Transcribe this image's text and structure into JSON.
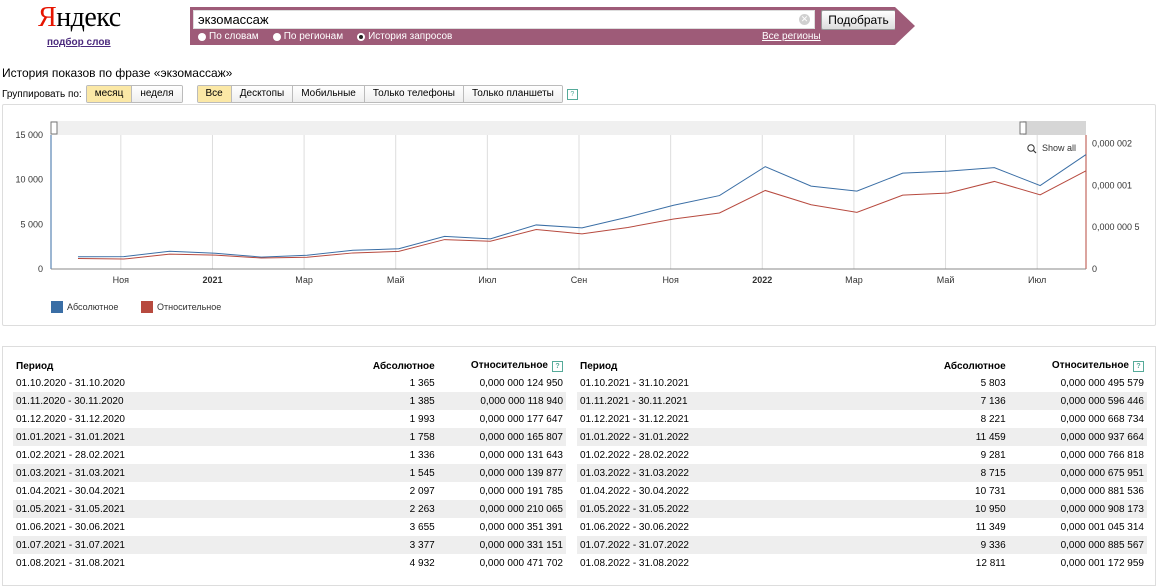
{
  "header": {
    "logo_prefix": "Я",
    "logo_rest": "ндекс",
    "logo_sub": "подбор слов",
    "query": "экзомассаж",
    "submit_label": "Подобрать",
    "radio_words": "По словам",
    "radio_regions": "По регионам",
    "radio_history": "История запросов",
    "regions_link": "Все регионы"
  },
  "heading": "История показов по фразе «экзомассаж»",
  "group": {
    "label": "Группировать по:",
    "month": "месяц",
    "week": "неделя",
    "all": "Все",
    "desktops": "Десктопы",
    "mobile": "Мобильные",
    "phones": "Только телефоны",
    "tablets": "Только планшеты"
  },
  "chart_data": {
    "type": "line",
    "x": [
      "2020-10",
      "2020-11",
      "2020-12",
      "2021-01",
      "2021-02",
      "2021-03",
      "2021-04",
      "2021-05",
      "2021-06",
      "2021-07",
      "2021-08",
      "2021-09",
      "2021-10",
      "2021-11",
      "2021-12",
      "2022-01",
      "2022-02",
      "2022-03",
      "2022-04",
      "2022-05",
      "2022-06",
      "2022-07",
      "2022-08"
    ],
    "series": [
      {
        "name": "Абсолютное",
        "axis": "left",
        "color": "#3a6ea5",
        "values": [
          1365,
          1385,
          1993,
          1758,
          1336,
          1545,
          2097,
          2263,
          3655,
          3377,
          4932,
          4600,
          5803,
          7136,
          8221,
          11459,
          9281,
          8715,
          10731,
          10950,
          11349,
          9336,
          12811
        ]
      },
      {
        "name": "Относительное",
        "axis": "right",
        "color": "#b74a3f",
        "values": [
          1.2495e-07,
          1.1894e-07,
          1.77647e-07,
          1.65807e-07,
          1.31643e-07,
          1.39877e-07,
          1.91785e-07,
          2.10065e-07,
          3.51391e-07,
          3.31151e-07,
          4.71702e-07,
          4.2e-07,
          4.95579e-07,
          5.96446e-07,
          6.68734e-07,
          9.37664e-07,
          7.66818e-07,
          6.75951e-07,
          8.81536e-07,
          9.08173e-07,
          1.045314e-06,
          8.85567e-07,
          1.172959e-06
        ]
      }
    ],
    "x_ticks": [
      "Ноя",
      "2021",
      "Мар",
      "Май",
      "Июл",
      "Сен",
      "Ноя",
      "2022",
      "Мар",
      "Май",
      "Июл"
    ],
    "y_left_ticks": [
      "0",
      "5 000",
      "10 000",
      "15 000"
    ],
    "y_right_ticks": [
      "0",
      "0,000 000 5",
      "0,000 001",
      "0,000 002"
    ],
    "ylim_left": [
      0,
      15000
    ],
    "legend_position": "bottom-left",
    "show_all": "Show all",
    "grid": true
  },
  "table": {
    "col_period": "Период",
    "col_abs": "Абсолютное",
    "col_rel": "Относительное",
    "left_rows": [
      [
        "01.10.2020 - 31.10.2020",
        "1 365",
        "0,000 000 124 950"
      ],
      [
        "01.11.2020 - 30.11.2020",
        "1 385",
        "0,000 000 118 940"
      ],
      [
        "01.12.2020 - 31.12.2020",
        "1 993",
        "0,000 000 177 647"
      ],
      [
        "01.01.2021 - 31.01.2021",
        "1 758",
        "0,000 000 165 807"
      ],
      [
        "01.02.2021 - 28.02.2021",
        "1 336",
        "0,000 000 131 643"
      ],
      [
        "01.03.2021 - 31.03.2021",
        "1 545",
        "0,000 000 139 877"
      ],
      [
        "01.04.2021 - 30.04.2021",
        "2 097",
        "0,000 000 191 785"
      ],
      [
        "01.05.2021 - 31.05.2021",
        "2 263",
        "0,000 000 210 065"
      ],
      [
        "01.06.2021 - 30.06.2021",
        "3 655",
        "0,000 000 351 391"
      ],
      [
        "01.07.2021 - 31.07.2021",
        "3 377",
        "0,000 000 331 151"
      ],
      [
        "01.08.2021 - 31.08.2021",
        "4 932",
        "0,000 000 471 702"
      ]
    ],
    "right_rows": [
      [
        "01.10.2021 - 31.10.2021",
        "5 803",
        "0,000 000 495 579"
      ],
      [
        "01.11.2021 - 30.11.2021",
        "7 136",
        "0,000 000 596 446"
      ],
      [
        "01.12.2021 - 31.12.2021",
        "8 221",
        "0,000 000 668 734"
      ],
      [
        "01.01.2022 - 31.01.2022",
        "11 459",
        "0,000 000 937 664"
      ],
      [
        "01.02.2022 - 28.02.2022",
        "9 281",
        "0,000 000 766 818"
      ],
      [
        "01.03.2022 - 31.03.2022",
        "8 715",
        "0,000 000 675 951"
      ],
      [
        "01.04.2022 - 30.04.2022",
        "10 731",
        "0,000 000 881 536"
      ],
      [
        "01.05.2022 - 31.05.2022",
        "10 950",
        "0,000 000 908 173"
      ],
      [
        "01.06.2022 - 30.06.2022",
        "11 349",
        "0,000 001 045 314"
      ],
      [
        "01.07.2022 - 31.07.2022",
        "9 336",
        "0,000 000 885 567"
      ],
      [
        "01.08.2022 - 31.08.2022",
        "12 811",
        "0,000 001 172 959"
      ]
    ]
  }
}
